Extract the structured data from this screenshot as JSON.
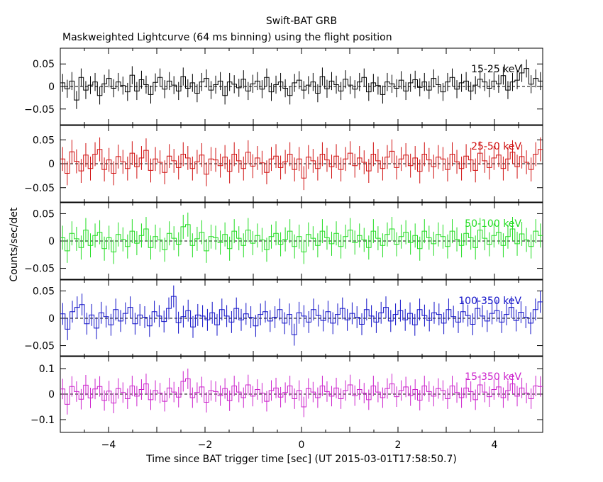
{
  "window": {
    "title": "Swift-BAT GRB",
    "subtitle": "Maskweighted Lightcurve (64 ms binning) using the flight position"
  },
  "chart_data": {
    "type": "line",
    "title": "Swift-BAT GRB",
    "subtitle": "Maskweighted Lightcurve (64 ms binning) using the flight position",
    "xlabel": "Time since BAT trigger time [sec] (UT 2015-03-01T17:58:50.7)",
    "ylabel": "Counts/sec/det",
    "xlim": [
      -5,
      5
    ],
    "x_ticks": [
      -4,
      -2,
      0,
      2,
      4
    ],
    "binning_sec": 0.064,
    "panels": [
      {
        "name": "15-25 keV",
        "color": "#000000",
        "ylim": [
          -0.085,
          0.085
        ],
        "y_ticks": [
          -0.05,
          0,
          0.05
        ],
        "y_tick_labels": [
          "−0.05",
          "0",
          "0.05"
        ],
        "values": [
          0.008,
          -0.005,
          0.012,
          -0.03,
          0.02,
          -0.008,
          0.003,
          0.01,
          -0.02,
          0.006,
          0.018,
          -0.004,
          0.01,
          0.002,
          -0.012,
          0.025,
          -0.01,
          0.015,
          0.004,
          -0.018,
          0.009,
          0.02,
          -0.006,
          0.012,
          0.003,
          -0.01,
          0.022,
          -0.004,
          0.008,
          -0.015,
          0.01,
          0.018,
          -0.008,
          0.004,
          0.012,
          -0.02,
          0.01,
          0.005,
          -0.003,
          0.016,
          -0.01,
          0.006,
          0.012,
          -0.006,
          0.02,
          -0.012,
          0.004,
          0.01,
          -0.004,
          -0.02,
          0.008,
          0.014,
          -0.008,
          0.003,
          0.01,
          -0.015,
          0.022,
          -0.005,
          0.012,
          0.004,
          -0.01,
          0.016,
          0.003,
          -0.006,
          0.01,
          0.02,
          -0.012,
          0.008,
          0.002,
          -0.018,
          0.01,
          0.006,
          -0.004,
          0.014,
          -0.01,
          0.008,
          0.015,
          -0.002,
          0.01,
          -0.008,
          0.018,
          0.004,
          -0.012,
          0.01,
          0.02,
          -0.006,
          0.008,
          0.012,
          -0.01,
          0.003,
          0.016,
          0.01,
          -0.004,
          0.012,
          0.006,
          0.024,
          -0.008,
          0.01,
          0.014,
          0.03,
          0.04,
          0.005,
          0.018,
          0.012
        ],
        "errors": 0.02
      },
      {
        "name": "25-50 keV",
        "color": "#d01010",
        "ylim": [
          -0.08,
          0.08
        ],
        "y_ticks": [
          -0.05,
          0,
          0.05
        ],
        "y_tick_labels": [
          "−0.05",
          "0",
          "0.05"
        ],
        "values": [
          0.01,
          -0.02,
          0.025,
          0.005,
          -0.015,
          0.018,
          -0.01,
          0.02,
          0.03,
          -0.012,
          0.008,
          -0.02,
          0.015,
          0.004,
          -0.01,
          0.022,
          -0.006,
          0.012,
          0.028,
          -0.014,
          0.01,
          0.003,
          -0.018,
          0.016,
          0.006,
          -0.008,
          0.02,
          0.012,
          -0.01,
          0.004,
          0.018,
          -0.022,
          0.01,
          0.008,
          -0.004,
          0.014,
          -0.016,
          0.02,
          0.006,
          -0.01,
          0.024,
          -0.005,
          0.012,
          0.002,
          -0.018,
          0.01,
          0.016,
          -0.008,
          0.004,
          0.02,
          -0.012,
          0.01,
          -0.03,
          0.014,
          0.006,
          -0.01,
          0.02,
          0.008,
          -0.006,
          0.016,
          -0.012,
          0.01,
          0.022,
          -0.004,
          0.012,
          0.003,
          -0.015,
          0.02,
          0.006,
          -0.01,
          0.014,
          0.026,
          -0.008,
          0.01,
          0.018,
          -0.004,
          0.012,
          -0.016,
          0.02,
          0.008,
          -0.006,
          0.014,
          0.01,
          -0.012,
          0.02,
          0.004,
          -0.01,
          0.016,
          0.008,
          -0.014,
          0.022,
          0.006,
          -0.008,
          0.012,
          0.018,
          -0.01,
          0.01,
          0.024,
          -0.006,
          0.015,
          0.003,
          -0.012,
          0.02,
          0.03
        ],
        "errors": 0.025
      },
      {
        "name": "50-100 keV",
        "color": "#22dd22",
        "ylim": [
          -0.07,
          0.07
        ],
        "y_ticks": [
          -0.05,
          0,
          0.05
        ],
        "y_tick_labels": [
          "−0.05",
          "0",
          "0.05"
        ],
        "values": [
          0.006,
          -0.018,
          0.014,
          0.004,
          -0.012,
          0.02,
          -0.008,
          0.01,
          0.016,
          -0.014,
          0.006,
          -0.02,
          0.012,
          0.003,
          -0.01,
          0.018,
          -0.004,
          0.01,
          0.022,
          -0.012,
          0.008,
          0.002,
          -0.016,
          0.014,
          0.005,
          -0.006,
          0.026,
          0.03,
          -0.008,
          0.004,
          0.016,
          -0.018,
          0.008,
          0.006,
          -0.003,
          0.012,
          -0.014,
          0.018,
          0.005,
          -0.008,
          0.02,
          -0.004,
          0.01,
          0.002,
          -0.016,
          0.008,
          0.014,
          -0.006,
          0.003,
          0.018,
          -0.01,
          0.008,
          -0.02,
          0.012,
          0.005,
          -0.008,
          0.018,
          0.006,
          -0.005,
          0.014,
          -0.01,
          0.008,
          0.02,
          -0.003,
          0.01,
          0.002,
          -0.012,
          0.018,
          0.005,
          -0.008,
          0.012,
          0.022,
          -0.006,
          0.008,
          0.016,
          -0.003,
          0.01,
          -0.014,
          0.018,
          0.006,
          -0.005,
          0.012,
          0.008,
          -0.01,
          0.018,
          0.003,
          -0.008,
          0.014,
          0.006,
          -0.012,
          0.02,
          0.005,
          -0.006,
          0.01,
          0.016,
          -0.008,
          0.008,
          0.022,
          -0.005,
          0.013,
          0.002,
          -0.01,
          0.018,
          0.01
        ],
        "errors": 0.022
      },
      {
        "name": "100-350 keV",
        "color": "#1010c8",
        "ylim": [
          -0.07,
          0.07
        ],
        "y_ticks": [
          -0.05,
          0,
          0.05
        ],
        "y_tick_labels": [
          "−0.05",
          "0",
          "0.05"
        ],
        "values": [
          0.008,
          -0.02,
          0.012,
          0.02,
          0.025,
          -0.01,
          0.006,
          -0.018,
          0.01,
          0.003,
          -0.012,
          0.016,
          -0.005,
          0.009,
          0.02,
          -0.01,
          0.006,
          0.002,
          -0.014,
          0.012,
          0.004,
          -0.006,
          0.018,
          0.04,
          -0.008,
          0.003,
          0.014,
          -0.016,
          0.006,
          0.004,
          -0.003,
          0.01,
          -0.012,
          0.016,
          0.004,
          -0.007,
          0.018,
          -0.003,
          0.008,
          0.002,
          -0.014,
          0.007,
          0.012,
          -0.005,
          0.002,
          0.016,
          -0.009,
          0.007,
          -0.03,
          0.01,
          0.004,
          -0.007,
          0.016,
          0.005,
          -0.004,
          0.012,
          -0.009,
          0.007,
          0.018,
          -0.003,
          0.009,
          0.002,
          -0.011,
          0.016,
          0.004,
          -0.007,
          0.01,
          0.02,
          -0.005,
          0.007,
          0.014,
          -0.003,
          0.009,
          -0.012,
          0.016,
          0.005,
          -0.004,
          0.01,
          0.007,
          -0.009,
          0.016,
          0.003,
          -0.007,
          0.012,
          0.005,
          -0.011,
          0.018,
          0.004,
          -0.005,
          0.009,
          0.014,
          -0.007,
          0.007,
          0.02,
          -0.004,
          0.011,
          0.002,
          -0.009,
          0.016,
          0.03
        ],
        "errors": 0.02
      },
      {
        "name": "15-350 keV",
        "color": "#cc22cc",
        "ylim": [
          -0.15,
          0.15
        ],
        "y_ticks": [
          -0.1,
          0,
          0.1
        ],
        "y_tick_labels": [
          "−0.1",
          "0",
          "0.1"
        ],
        "values": [
          0.02,
          -0.04,
          0.03,
          0.01,
          -0.02,
          0.035,
          -0.015,
          0.02,
          0.03,
          -0.025,
          0.012,
          -0.035,
          0.022,
          0.006,
          -0.018,
          0.032,
          -0.008,
          0.018,
          0.04,
          -0.022,
          0.014,
          0.004,
          -0.028,
          0.024,
          0.008,
          -0.012,
          0.05,
          0.06,
          -0.014,
          0.006,
          0.028,
          -0.032,
          0.014,
          0.01,
          -0.006,
          0.022,
          -0.026,
          0.032,
          0.008,
          -0.014,
          0.036,
          -0.008,
          0.018,
          0.004,
          -0.028,
          0.014,
          0.024,
          -0.012,
          0.006,
          0.032,
          -0.018,
          0.014,
          -0.05,
          0.022,
          0.008,
          -0.014,
          0.032,
          0.01,
          -0.008,
          0.024,
          -0.018,
          0.014,
          0.036,
          -0.006,
          0.018,
          0.004,
          -0.022,
          0.032,
          0.008,
          -0.014,
          0.022,
          0.04,
          -0.01,
          0.014,
          0.028,
          -0.006,
          0.018,
          -0.024,
          0.032,
          0.01,
          -0.008,
          0.022,
          0.014,
          -0.018,
          0.032,
          0.006,
          -0.014,
          0.024,
          0.01,
          -0.022,
          0.036,
          0.008,
          -0.01,
          0.018,
          0.028,
          -0.014,
          0.014,
          0.04,
          -0.008,
          0.024,
          0.004,
          -0.018,
          0.032,
          0.03
        ],
        "errors": 0.04
      }
    ]
  }
}
